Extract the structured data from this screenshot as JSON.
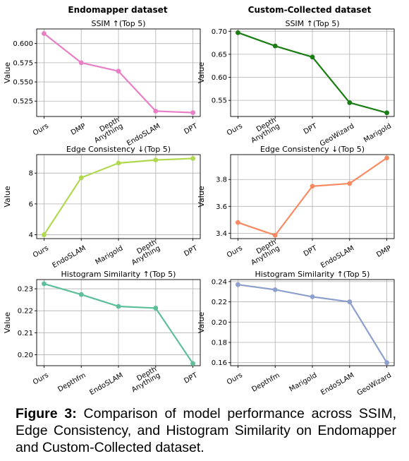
{
  "column_titles": [
    "Endomapper dataset",
    "Custom-Collected dataset"
  ],
  "caption": {
    "label": "Figure 3:",
    "text": " Comparison of model performance across SSIM, Edge Consistency, and Histogram Similarity on Endomapper and Custom-Collected dataset."
  },
  "chart_data": [
    {
      "type": "line",
      "title": "SSIM ↑(Top 5)",
      "ylabel": "Value",
      "color": "#e87fc6",
      "categories": [
        "Ours",
        "DMP",
        "Depth\nAnything",
        "EndoSLAM",
        "DPT"
      ],
      "values": [
        0.613,
        0.575,
        0.564,
        0.512,
        0.51
      ],
      "yticks": [
        0.525,
        0.55,
        0.575,
        0.6
      ],
      "ylim": [
        0.505,
        0.619
      ],
      "grid": true
    },
    {
      "type": "line",
      "title": "SSIM ↑(Top 5)",
      "ylabel": "Value",
      "color": "#1a7d13",
      "categories": [
        "Ours",
        "Depth\nAnything",
        "DPT",
        "GeoWizard",
        "Marigold"
      ],
      "values": [
        0.697,
        0.668,
        0.644,
        0.545,
        0.523
      ],
      "yticks": [
        0.55,
        0.6,
        0.65,
        0.7
      ],
      "ylim": [
        0.515,
        0.705
      ],
      "grid": true
    },
    {
      "type": "line",
      "title": "Edge Consistency ↓(Top 5)",
      "ylabel": "Value",
      "color": "#b0d94f",
      "categories": [
        "Ours",
        "EndoSLAM",
        "Marigold",
        "Depth\nAnything",
        "DPT"
      ],
      "values": [
        4.0,
        7.7,
        8.65,
        8.85,
        8.95
      ],
      "yticks": [
        4,
        6,
        8
      ],
      "ylim": [
        3.75,
        9.2
      ],
      "grid": true
    },
    {
      "type": "line",
      "title": "Edge Consistency ↓(Top 5)",
      "ylabel": "Value",
      "color": "#f88a62",
      "categories": [
        "Ours",
        "Depth\nAnything",
        "DPT",
        "EndoSLAM",
        "DMP"
      ],
      "values": [
        3.48,
        3.385,
        3.75,
        3.77,
        3.96
      ],
      "yticks": [
        3.4,
        3.6,
        3.8
      ],
      "ylim": [
        3.36,
        3.985
      ],
      "grid": true
    },
    {
      "type": "line",
      "title": "Histogram Similarity ↑(Top 5)",
      "ylabel": "Value",
      "color": "#5dbf9a",
      "categories": [
        "Ours",
        "Depthfm",
        "EndoSLAM",
        "Depth\nAnything",
        "DPT"
      ],
      "values": [
        0.2323,
        0.2274,
        0.222,
        0.2212,
        0.196
      ],
      "yticks": [
        0.2,
        0.21,
        0.22,
        0.23
      ],
      "ylim": [
        0.195,
        0.2342
      ],
      "grid": true
    },
    {
      "type": "line",
      "title": "Histogram Similarity ↑(Top 5)",
      "ylabel": "Value",
      "color": "#8d9fcd",
      "categories": [
        "Ours",
        "Depthfm",
        "Marigold",
        "EndoSLAM",
        "GeoWizard"
      ],
      "values": [
        0.237,
        0.232,
        0.225,
        0.22,
        0.16
      ],
      "yticks": [
        0.16,
        0.18,
        0.2,
        0.22,
        0.24
      ],
      "ylim": [
        0.157,
        0.242
      ],
      "grid": true
    }
  ]
}
